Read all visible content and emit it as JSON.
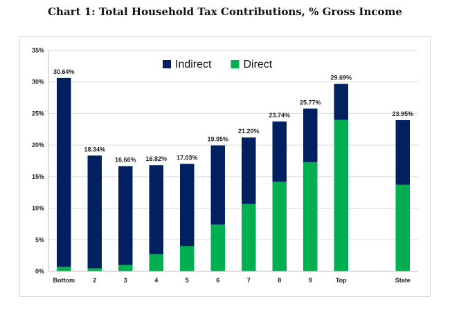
{
  "chart_data": {
    "type": "bar",
    "stacked": true,
    "title": "Chart 1: Total Household Tax Contributions, % Gross Income",
    "xlabel": "",
    "ylabel": "",
    "ylim": [
      0,
      35
    ],
    "yticks": [
      "0%",
      "5%",
      "10%",
      "15%",
      "20%",
      "25%",
      "30%",
      "35%"
    ],
    "grid": true,
    "legend": "top-center",
    "categories": [
      "Bottom",
      "2",
      "3",
      "4",
      "5",
      "6",
      "7",
      "8",
      "9",
      "Top",
      "",
      "State"
    ],
    "series": [
      {
        "name": "Direct",
        "color": "#00b050",
        "values": [
          0.7,
          0.5,
          1.0,
          2.7,
          4.0,
          7.4,
          10.7,
          14.2,
          17.3,
          24.0,
          null,
          13.7
        ]
      },
      {
        "name": "Indirect",
        "color": "#002060",
        "values": [
          29.94,
          17.84,
          15.66,
          14.12,
          13.03,
          12.55,
          10.5,
          9.54,
          8.47,
          5.69,
          null,
          10.25
        ]
      }
    ],
    "legend_order": [
      "Indirect",
      "Direct"
    ],
    "data_labels": [
      "30.64%",
      "18.34%",
      "16.66%",
      "16.82%",
      "17.03%",
      "19.95%",
      "21.20%",
      "23.74%",
      "25.77%",
      "29.69%",
      "",
      "23.95%"
    ]
  }
}
